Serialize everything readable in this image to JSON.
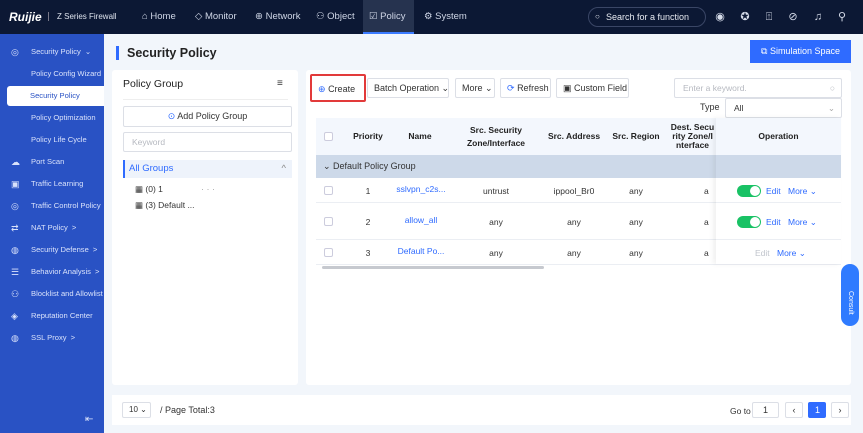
{
  "header": {
    "logo": "Ruijie",
    "product": "Z Series Firewall",
    "nav": [
      {
        "label": "Home",
        "icon": "home-icon"
      },
      {
        "label": "Monitor",
        "icon": "shield-icon"
      },
      {
        "label": "Network",
        "icon": "globe-icon"
      },
      {
        "label": "Object",
        "icon": "user-object-icon"
      },
      {
        "label": "Policy",
        "icon": "policy-icon",
        "active": true
      },
      {
        "label": "System",
        "icon": "gear-icon"
      }
    ],
    "search_placeholder": "Search for a function",
    "icons": [
      "signal-icon",
      "support-icon",
      "upload-icon",
      "compass-icon",
      "headset-icon",
      "user-icon"
    ]
  },
  "sidebar": {
    "items": [
      {
        "label": "Security Policy",
        "arrow": "⌄"
      },
      {
        "label": "Policy Config Wizard"
      },
      {
        "label": "Security Policy",
        "selected": true
      },
      {
        "label": "Policy Optimization"
      },
      {
        "label": "Policy Life Cycle"
      },
      {
        "label": "Port Scan"
      },
      {
        "label": "Traffic Learning"
      },
      {
        "label": "Traffic Control Policy"
      },
      {
        "label": "NAT Policy",
        "arrow": ">"
      },
      {
        "label": "Security Defense",
        "arrow": ">"
      },
      {
        "label": "Behavior Analysis",
        "arrow": ">"
      },
      {
        "label": "Blocklist and Allowlist"
      },
      {
        "label": "Reputation Center"
      },
      {
        "label": "SSL Proxy",
        "arrow": ">"
      }
    ]
  },
  "page": {
    "title": "Security Policy",
    "simulation": "Simulation Space"
  },
  "group_panel": {
    "title": "Policy Group",
    "add": "Add Policy Group",
    "keyword_placeholder": "Keyword",
    "all": "All Groups",
    "groups": [
      "(0) 1",
      "(3) Default ..."
    ],
    "dots": "· · ·"
  },
  "toolbar": {
    "create": "Create",
    "batch": "Batch Operation",
    "more": "More",
    "refresh": "Refresh",
    "custom": "Custom Field",
    "search_placeholder": "Enter a keyword.",
    "type_label": "Type",
    "type_value": "All"
  },
  "table": {
    "headers": [
      "Priority",
      "Name",
      "Src. Security Zone/Interface",
      "Src. Address",
      "Src. Region",
      "Dest. Security Zone/Interface",
      "Operation"
    ],
    "group": "Default Policy Group",
    "rows": [
      {
        "priority": "1",
        "name": "sslvpn_c2s...",
        "src_zone": "untrust",
        "src_addr": "ippool_Br0",
        "src_region": "any",
        "dest": "a",
        "enabled": true
      },
      {
        "priority": "2",
        "name": "allow_all",
        "src_zone": "any",
        "src_addr": "any",
        "src_region": "any",
        "dest": "a",
        "enabled": true
      },
      {
        "priority": "3",
        "name": "Default Po...",
        "src_zone": "any",
        "src_addr": "any",
        "src_region": "any",
        "dest": "a",
        "enabled": null
      }
    ],
    "edit": "Edit",
    "more": "More"
  },
  "footer": {
    "page_size": "10",
    "total": "/ Page Total:3",
    "goto": "Go to",
    "goto_value": "1",
    "current": "1"
  },
  "consult": "Consult"
}
